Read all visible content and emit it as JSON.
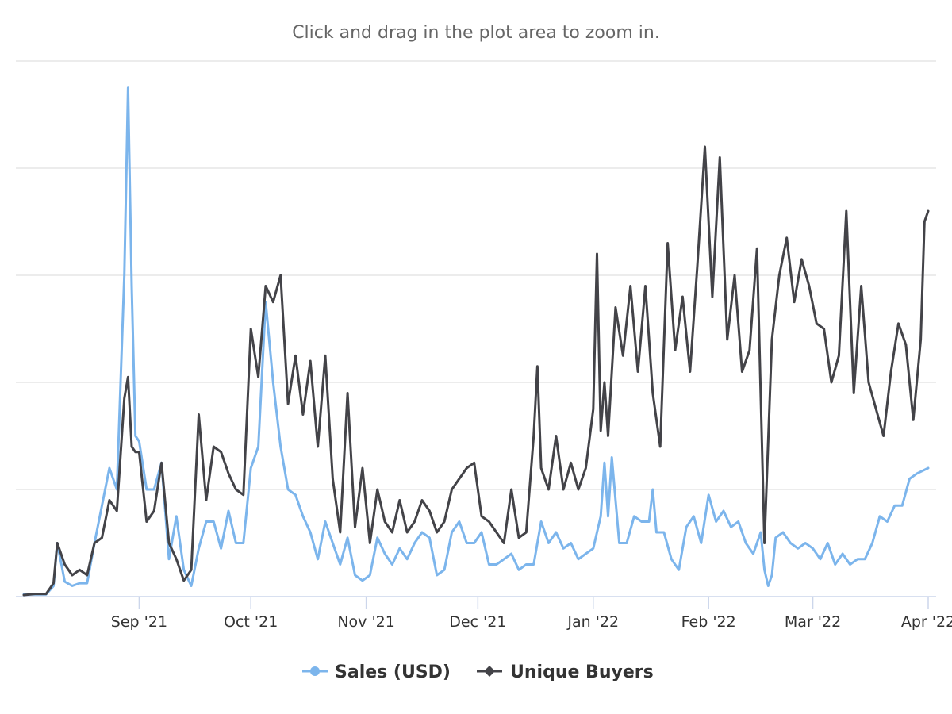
{
  "subtitle": "Click and drag in the plot area to zoom in.",
  "colors": {
    "sales": "#7cb5ec",
    "buyers": "#434348",
    "grid": "#e6e6e6",
    "axis": "#ccd6eb"
  },
  "chart_data": {
    "type": "line",
    "x_type": "date",
    "x_range": [
      "2021-08-01",
      "2022-04-01"
    ],
    "y_range": [
      0,
      1
    ],
    "y_gridlines": [
      0,
      0.2,
      0.4,
      0.6,
      0.8,
      1.0
    ],
    "x_tick_labels": [
      {
        "date": "2021-09-01",
        "label": "Sep '21"
      },
      {
        "date": "2021-10-01",
        "label": "Oct '21"
      },
      {
        "date": "2021-11-01",
        "label": "Nov '21"
      },
      {
        "date": "2021-12-01",
        "label": "Dec '21"
      },
      {
        "date": "2022-01-01",
        "label": "Jan '22"
      },
      {
        "date": "2022-02-01",
        "label": "Feb '22"
      },
      {
        "date": "2022-03-01",
        "label": "Mar '22"
      },
      {
        "date": "2022-04-01",
        "label": "Apr '22"
      }
    ],
    "series": [
      {
        "name": "Sales (USD)",
        "color": "#7cb5ec",
        "marker": "circle",
        "points": [
          [
            "2021-08-01",
            0.004
          ],
          [
            "2021-08-04",
            0.004
          ],
          [
            "2021-08-07",
            0.004
          ],
          [
            "2021-08-09",
            0.02
          ],
          [
            "2021-08-10",
            0.1
          ],
          [
            "2021-08-12",
            0.028
          ],
          [
            "2021-08-14",
            0.02
          ],
          [
            "2021-08-16",
            0.025
          ],
          [
            "2021-08-18",
            0.025
          ],
          [
            "2021-08-20",
            0.1
          ],
          [
            "2021-08-22",
            0.17
          ],
          [
            "2021-08-24",
            0.24
          ],
          [
            "2021-08-26",
            0.2
          ],
          [
            "2021-08-28",
            0.6
          ],
          [
            "2021-08-29",
            0.95
          ],
          [
            "2021-08-30",
            0.58
          ],
          [
            "2021-08-31",
            0.3
          ],
          [
            "2021-09-01",
            0.29
          ],
          [
            "2021-09-03",
            0.2
          ],
          [
            "2021-09-05",
            0.2
          ],
          [
            "2021-09-07",
            0.25
          ],
          [
            "2021-09-09",
            0.07
          ],
          [
            "2021-09-11",
            0.15
          ],
          [
            "2021-09-13",
            0.05
          ],
          [
            "2021-09-15",
            0.02
          ],
          [
            "2021-09-17",
            0.09
          ],
          [
            "2021-09-19",
            0.14
          ],
          [
            "2021-09-21",
            0.14
          ],
          [
            "2021-09-23",
            0.09
          ],
          [
            "2021-09-25",
            0.16
          ],
          [
            "2021-09-27",
            0.1
          ],
          [
            "2021-09-29",
            0.1
          ],
          [
            "2021-10-01",
            0.24
          ],
          [
            "2021-10-03",
            0.28
          ],
          [
            "2021-10-05",
            0.55
          ],
          [
            "2021-10-07",
            0.4
          ],
          [
            "2021-10-09",
            0.28
          ],
          [
            "2021-10-11",
            0.2
          ],
          [
            "2021-10-13",
            0.19
          ],
          [
            "2021-10-15",
            0.15
          ],
          [
            "2021-10-17",
            0.12
          ],
          [
            "2021-10-19",
            0.07
          ],
          [
            "2021-10-21",
            0.14
          ],
          [
            "2021-10-23",
            0.1
          ],
          [
            "2021-10-25",
            0.06
          ],
          [
            "2021-10-27",
            0.11
          ],
          [
            "2021-10-29",
            0.04
          ],
          [
            "2021-10-31",
            0.03
          ],
          [
            "2021-11-02",
            0.04
          ],
          [
            "2021-11-04",
            0.11
          ],
          [
            "2021-11-06",
            0.08
          ],
          [
            "2021-11-08",
            0.06
          ],
          [
            "2021-11-10",
            0.09
          ],
          [
            "2021-11-12",
            0.07
          ],
          [
            "2021-11-14",
            0.1
          ],
          [
            "2021-11-16",
            0.12
          ],
          [
            "2021-11-18",
            0.11
          ],
          [
            "2021-11-20",
            0.04
          ],
          [
            "2021-11-22",
            0.05
          ],
          [
            "2021-11-24",
            0.12
          ],
          [
            "2021-11-26",
            0.14
          ],
          [
            "2021-11-28",
            0.1
          ],
          [
            "2021-11-30",
            0.1
          ],
          [
            "2021-12-02",
            0.12
          ],
          [
            "2021-12-04",
            0.06
          ],
          [
            "2021-12-06",
            0.06
          ],
          [
            "2021-12-08",
            0.07
          ],
          [
            "2021-12-10",
            0.08
          ],
          [
            "2021-12-12",
            0.05
          ],
          [
            "2021-12-14",
            0.06
          ],
          [
            "2021-12-16",
            0.06
          ],
          [
            "2021-12-18",
            0.14
          ],
          [
            "2021-12-20",
            0.1
          ],
          [
            "2021-12-22",
            0.12
          ],
          [
            "2021-12-24",
            0.09
          ],
          [
            "2021-12-26",
            0.1
          ],
          [
            "2021-12-28",
            0.07
          ],
          [
            "2021-12-30",
            0.08
          ],
          [
            "2022-01-01",
            0.09
          ],
          [
            "2022-01-03",
            0.15
          ],
          [
            "2022-01-04",
            0.25
          ],
          [
            "2022-01-05",
            0.15
          ],
          [
            "2022-01-06",
            0.26
          ],
          [
            "2022-01-08",
            0.1
          ],
          [
            "2022-01-10",
            0.1
          ],
          [
            "2022-01-12",
            0.15
          ],
          [
            "2022-01-14",
            0.14
          ],
          [
            "2022-01-16",
            0.14
          ],
          [
            "2022-01-17",
            0.2
          ],
          [
            "2022-01-18",
            0.12
          ],
          [
            "2022-01-20",
            0.12
          ],
          [
            "2022-01-22",
            0.07
          ],
          [
            "2022-01-24",
            0.05
          ],
          [
            "2022-01-26",
            0.13
          ],
          [
            "2022-01-28",
            0.15
          ],
          [
            "2022-01-30",
            0.1
          ],
          [
            "2022-02-01",
            0.19
          ],
          [
            "2022-02-03",
            0.14
          ],
          [
            "2022-02-05",
            0.16
          ],
          [
            "2022-02-07",
            0.13
          ],
          [
            "2022-02-09",
            0.14
          ],
          [
            "2022-02-11",
            0.1
          ],
          [
            "2022-02-13",
            0.08
          ],
          [
            "2022-02-15",
            0.12
          ],
          [
            "2022-02-16",
            0.05
          ],
          [
            "2022-02-17",
            0.02
          ],
          [
            "2022-02-18",
            0.04
          ],
          [
            "2022-02-19",
            0.11
          ],
          [
            "2022-02-21",
            0.12
          ],
          [
            "2022-02-23",
            0.1
          ],
          [
            "2022-02-25",
            0.09
          ],
          [
            "2022-02-27",
            0.1
          ],
          [
            "2022-03-01",
            0.09
          ],
          [
            "2022-03-03",
            0.07
          ],
          [
            "2022-03-05",
            0.1
          ],
          [
            "2022-03-07",
            0.06
          ],
          [
            "2022-03-09",
            0.08
          ],
          [
            "2022-03-11",
            0.06
          ],
          [
            "2022-03-13",
            0.07
          ],
          [
            "2022-03-15",
            0.07
          ],
          [
            "2022-03-17",
            0.1
          ],
          [
            "2022-03-19",
            0.15
          ],
          [
            "2022-03-21",
            0.14
          ],
          [
            "2022-03-23",
            0.17
          ],
          [
            "2022-03-25",
            0.17
          ],
          [
            "2022-03-27",
            0.22
          ],
          [
            "2022-03-29",
            0.23
          ],
          [
            "2022-04-01",
            0.24
          ]
        ]
      },
      {
        "name": "Unique Buyers",
        "color": "#434348",
        "marker": "diamond",
        "points": [
          [
            "2021-08-01",
            0.003
          ],
          [
            "2021-08-04",
            0.005
          ],
          [
            "2021-08-07",
            0.005
          ],
          [
            "2021-08-09",
            0.025
          ],
          [
            "2021-08-10",
            0.1
          ],
          [
            "2021-08-12",
            0.06
          ],
          [
            "2021-08-14",
            0.04
          ],
          [
            "2021-08-16",
            0.05
          ],
          [
            "2021-08-18",
            0.04
          ],
          [
            "2021-08-20",
            0.1
          ],
          [
            "2021-08-22",
            0.11
          ],
          [
            "2021-08-24",
            0.18
          ],
          [
            "2021-08-26",
            0.16
          ],
          [
            "2021-08-28",
            0.37
          ],
          [
            "2021-08-29",
            0.41
          ],
          [
            "2021-08-30",
            0.28
          ],
          [
            "2021-08-31",
            0.27
          ],
          [
            "2021-09-01",
            0.27
          ],
          [
            "2021-09-03",
            0.14
          ],
          [
            "2021-09-05",
            0.16
          ],
          [
            "2021-09-07",
            0.25
          ],
          [
            "2021-09-09",
            0.1
          ],
          [
            "2021-09-11",
            0.07
          ],
          [
            "2021-09-13",
            0.03
          ],
          [
            "2021-09-15",
            0.05
          ],
          [
            "2021-09-17",
            0.34
          ],
          [
            "2021-09-19",
            0.18
          ],
          [
            "2021-09-21",
            0.28
          ],
          [
            "2021-09-23",
            0.27
          ],
          [
            "2021-09-25",
            0.23
          ],
          [
            "2021-09-27",
            0.2
          ],
          [
            "2021-09-29",
            0.19
          ],
          [
            "2021-10-01",
            0.5
          ],
          [
            "2021-10-03",
            0.41
          ],
          [
            "2021-10-05",
            0.58
          ],
          [
            "2021-10-07",
            0.55
          ],
          [
            "2021-10-09",
            0.6
          ],
          [
            "2021-10-11",
            0.36
          ],
          [
            "2021-10-13",
            0.45
          ],
          [
            "2021-10-15",
            0.34
          ],
          [
            "2021-10-17",
            0.44
          ],
          [
            "2021-10-19",
            0.28
          ],
          [
            "2021-10-21",
            0.45
          ],
          [
            "2021-10-23",
            0.22
          ],
          [
            "2021-10-25",
            0.12
          ],
          [
            "2021-10-27",
            0.38
          ],
          [
            "2021-10-29",
            0.13
          ],
          [
            "2021-10-31",
            0.24
          ],
          [
            "2021-11-02",
            0.1
          ],
          [
            "2021-11-04",
            0.2
          ],
          [
            "2021-11-06",
            0.14
          ],
          [
            "2021-11-08",
            0.12
          ],
          [
            "2021-11-10",
            0.18
          ],
          [
            "2021-11-12",
            0.12
          ],
          [
            "2021-11-14",
            0.14
          ],
          [
            "2021-11-16",
            0.18
          ],
          [
            "2021-11-18",
            0.16
          ],
          [
            "2021-11-20",
            0.12
          ],
          [
            "2021-11-22",
            0.14
          ],
          [
            "2021-11-24",
            0.2
          ],
          [
            "2021-11-26",
            0.22
          ],
          [
            "2021-11-28",
            0.24
          ],
          [
            "2021-11-30",
            0.25
          ],
          [
            "2021-12-02",
            0.15
          ],
          [
            "2021-12-04",
            0.14
          ],
          [
            "2021-12-06",
            0.12
          ],
          [
            "2021-12-08",
            0.1
          ],
          [
            "2021-12-10",
            0.2
          ],
          [
            "2021-12-12",
            0.11
          ],
          [
            "2021-12-14",
            0.12
          ],
          [
            "2021-12-16",
            0.3
          ],
          [
            "2021-12-17",
            0.43
          ],
          [
            "2021-12-18",
            0.24
          ],
          [
            "2021-12-20",
            0.2
          ],
          [
            "2021-12-22",
            0.3
          ],
          [
            "2021-12-24",
            0.2
          ],
          [
            "2021-12-26",
            0.25
          ],
          [
            "2021-12-28",
            0.2
          ],
          [
            "2021-12-30",
            0.24
          ],
          [
            "2022-01-01",
            0.35
          ],
          [
            "2022-01-02",
            0.64
          ],
          [
            "2022-01-03",
            0.31
          ],
          [
            "2022-01-04",
            0.4
          ],
          [
            "2022-01-05",
            0.3
          ],
          [
            "2022-01-07",
            0.54
          ],
          [
            "2022-01-09",
            0.45
          ],
          [
            "2022-01-11",
            0.58
          ],
          [
            "2022-01-13",
            0.42
          ],
          [
            "2022-01-15",
            0.58
          ],
          [
            "2022-01-17",
            0.38
          ],
          [
            "2022-01-19",
            0.28
          ],
          [
            "2022-01-21",
            0.66
          ],
          [
            "2022-01-23",
            0.46
          ],
          [
            "2022-01-25",
            0.56
          ],
          [
            "2022-01-27",
            0.42
          ],
          [
            "2022-01-29",
            0.62
          ],
          [
            "2022-01-31",
            0.84
          ],
          [
            "2022-02-02",
            0.56
          ],
          [
            "2022-02-04",
            0.82
          ],
          [
            "2022-02-06",
            0.48
          ],
          [
            "2022-02-08",
            0.6
          ],
          [
            "2022-02-10",
            0.42
          ],
          [
            "2022-02-12",
            0.46
          ],
          [
            "2022-02-14",
            0.65
          ],
          [
            "2022-02-16",
            0.1
          ],
          [
            "2022-02-18",
            0.48
          ],
          [
            "2022-02-20",
            0.6
          ],
          [
            "2022-02-22",
            0.67
          ],
          [
            "2022-02-24",
            0.55
          ],
          [
            "2022-02-26",
            0.63
          ],
          [
            "2022-02-28",
            0.58
          ],
          [
            "2022-03-02",
            0.51
          ],
          [
            "2022-03-04",
            0.5
          ],
          [
            "2022-03-06",
            0.4
          ],
          [
            "2022-03-08",
            0.45
          ],
          [
            "2022-03-10",
            0.72
          ],
          [
            "2022-03-12",
            0.38
          ],
          [
            "2022-03-14",
            0.58
          ],
          [
            "2022-03-16",
            0.4
          ],
          [
            "2022-03-18",
            0.35
          ],
          [
            "2022-03-20",
            0.3
          ],
          [
            "2022-03-22",
            0.42
          ],
          [
            "2022-03-24",
            0.51
          ],
          [
            "2022-03-26",
            0.47
          ],
          [
            "2022-03-28",
            0.33
          ],
          [
            "2022-03-30",
            0.48
          ],
          [
            "2022-03-31",
            0.7
          ],
          [
            "2022-04-01",
            0.72
          ]
        ]
      }
    ],
    "legend": "bottom-center"
  },
  "legend": {
    "items": [
      {
        "label": "Sales (USD)",
        "color": "#7cb5ec",
        "marker": "circle"
      },
      {
        "label": "Unique Buyers",
        "color": "#434348",
        "marker": "diamond"
      }
    ]
  }
}
